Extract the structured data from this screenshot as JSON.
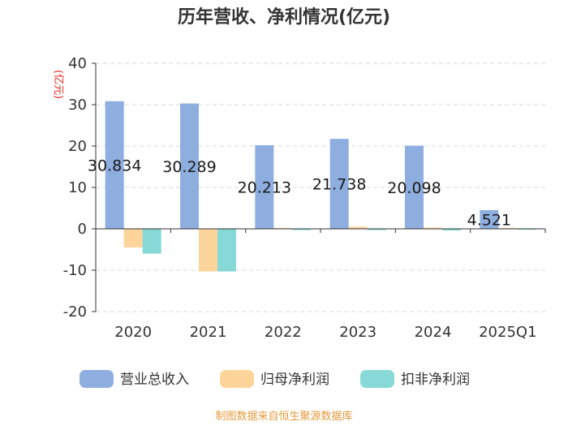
{
  "chart_data": {
    "type": "bar",
    "title": "历年营收、净利情况(亿元)",
    "ylabel": "(亿元)",
    "categories": [
      "2020",
      "2021",
      "2022",
      "2023",
      "2024",
      "2025Q1"
    ],
    "ylim": [
      -20,
      40
    ],
    "yticks": [
      "40",
      "30",
      "20",
      "10",
      "0",
      "-10",
      "-20"
    ],
    "grid": true,
    "legend_position": "bottom",
    "series": [
      {
        "name": "营业总收入",
        "color": "#8eaedf",
        "values": [
          30.834,
          30.289,
          20.213,
          21.738,
          20.098,
          4.521
        ],
        "labels": [
          "30.834",
          "30.289",
          "20.213",
          "21.738",
          "20.098",
          "4.521"
        ]
      },
      {
        "name": "归母净利润",
        "color": "#fdd49a",
        "values": [
          -4.5,
          -10.3,
          0.2,
          0.5,
          0.3,
          0.2
        ]
      },
      {
        "name": "扣非净利润",
        "color": "#86d9d6",
        "values": [
          -6.0,
          -10.3,
          -0.3,
          -0.3,
          -0.4,
          -0.2
        ]
      }
    ]
  },
  "footer": {
    "source": "制图数据来自恒生聚源数据库"
  }
}
